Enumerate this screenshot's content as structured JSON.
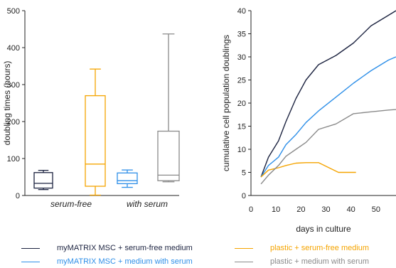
{
  "chart_data": [
    {
      "type": "box",
      "xlabel": "",
      "ylabel": "doubling times (hours)",
      "ylim": [
        0,
        500
      ],
      "yticks": [
        0,
        100,
        200,
        300,
        400,
        500
      ],
      "grid": false,
      "categories": [
        "serum-free",
        "with serum"
      ],
      "boxes": [
        {
          "series": "myMATRIX MSC + serum-free medium",
          "category": "serum-free",
          "min": 16,
          "q1": 20,
          "median": 33,
          "q3": 62,
          "max": 68
        },
        {
          "series": "plastic + serum-free medium",
          "category": "serum-free",
          "min": 1,
          "q1": 25,
          "median": 85,
          "q3": 270,
          "max": 342
        },
        {
          "series": "myMATRIX MSC + medium with serum",
          "category": "with serum",
          "min": 22,
          "q1": 32,
          "median": 40,
          "q3": 61,
          "max": 69
        },
        {
          "series": "plastic + medium with serum",
          "category": "with serum",
          "min": 37,
          "q1": 40,
          "median": 55,
          "q3": 174,
          "max": 437
        }
      ]
    },
    {
      "type": "line",
      "xlabel": "days in culture",
      "ylabel": "cumulative cell population doublings",
      "xlim": [
        0,
        58
      ],
      "ylim": [
        0,
        40
      ],
      "xticks": [
        0,
        10,
        20,
        30,
        40,
        50
      ],
      "yticks": [
        0,
        5,
        10,
        15,
        20,
        25,
        30,
        35,
        40
      ],
      "grid": false,
      "series": [
        {
          "name": "myMATRIX MSC + serum-free medium",
          "x": [
            4,
            7,
            11,
            14,
            18,
            22,
            27,
            34,
            41,
            48,
            55,
            58
          ],
          "y": [
            4,
            8.3,
            11.8,
            16,
            21,
            25,
            28.3,
            30.3,
            33,
            36.7,
            39,
            40
          ]
        },
        {
          "name": "myMATRIX MSC + medium with serum",
          "x": [
            4,
            7,
            11,
            14,
            18,
            22,
            27,
            34,
            41,
            48,
            55,
            58
          ],
          "y": [
            4,
            6.5,
            8.3,
            11,
            13.2,
            15.8,
            18.3,
            21.3,
            24.3,
            27,
            29.3,
            30
          ]
        },
        {
          "name": "plastic + serum-free medium",
          "x": [
            4,
            7,
            11,
            14,
            18,
            22,
            27,
            35,
            42
          ],
          "y": [
            4,
            5.5,
            6,
            6.5,
            7,
            7.1,
            7.1,
            5,
            5
          ]
        },
        {
          "name": "plastic + medium with serum",
          "x": [
            4,
            7,
            11,
            14,
            18,
            22,
            27,
            34,
            41,
            48,
            55,
            58
          ],
          "y": [
            2.5,
            4.4,
            6.5,
            8.5,
            10,
            11.5,
            14.3,
            15.5,
            17.7,
            18.1,
            18.5,
            18.6
          ]
        }
      ]
    }
  ],
  "legend": [
    {
      "label": "myMATRIX MSC + serum-free medium",
      "color": "#1c2340"
    },
    {
      "label": "plastic + serum-free medium",
      "color": "#f5a400"
    },
    {
      "label": "myMATRIX MSC + medium with serum",
      "color": "#2e8fe8"
    },
    {
      "label": "plastic + medium with serum",
      "color": "#8a8a8a"
    }
  ]
}
